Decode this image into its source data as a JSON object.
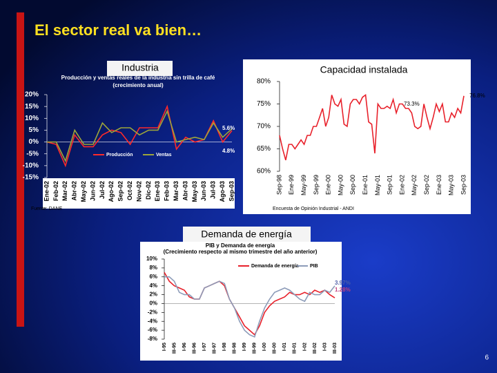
{
  "title": "El sector real va bien…",
  "page_number": "6",
  "chart_data": [
    {
      "type": "line",
      "panel_title": "Industria",
      "title": "Producción y ventas reales de la industria sin trilla de café",
      "subtitle": "(crecimiento anual)",
      "source": "Fuente: DANE",
      "categories": [
        "Ene-02",
        "Feb-02",
        "Mar-02",
        "Abr-02",
        "May-02",
        "Jun-02",
        "Jul-02",
        "Ago-02",
        "Sep-02",
        "Oct-02",
        "Nov-02",
        "Dic-02",
        "Ene-03",
        "Feb-03",
        "Mar-03",
        "Abr-03",
        "May-03",
        "Jun-03",
        "Jul-03",
        "Ago-03",
        "Sep-03"
      ],
      "series": [
        {
          "name": "Producción",
          "color": "#ff2a2a",
          "values": [
            0,
            -1,
            -10,
            3,
            -2,
            -2,
            3,
            5,
            4,
            -1,
            6,
            6,
            6,
            15,
            -3,
            2,
            0,
            1,
            9,
            0,
            4.8
          ]
        },
        {
          "name": "Ventas",
          "color": "#9ea63a",
          "values": [
            0,
            0,
            -8,
            5,
            -1,
            -1,
            8,
            4,
            6,
            6,
            3,
            5,
            5,
            13,
            0,
            1,
            2,
            1,
            8,
            2,
            5.6
          ]
        }
      ],
      "annotations": [
        "5.6%",
        "4.8%"
      ],
      "ylim": [
        -15,
        20
      ],
      "yticks": [
        {
          "value": 20,
          "label": "20%"
        },
        {
          "value": 15,
          "label": "15%"
        },
        {
          "value": 10,
          "label": "10%"
        },
        {
          "value": 5,
          "label": "5%"
        },
        {
          "value": 0,
          "label": "0%"
        },
        {
          "value": -5,
          "label": "-5%"
        },
        {
          "value": -10,
          "label": "-10%"
        },
        {
          "value": -15,
          "label": "-15%"
        }
      ],
      "grid": false,
      "legend": "bottom"
    },
    {
      "type": "line",
      "panel_title": "Capacidad instalada",
      "source": "Encuesta de Opinión Industrial - ANDI",
      "categories": [
        "Sep-98",
        null,
        null,
        null,
        "Ene-99",
        null,
        null,
        null,
        "May-99",
        null,
        null,
        null,
        "Sep-99",
        null,
        null,
        null,
        "Ene-00",
        null,
        null,
        null,
        "May-00",
        null,
        null,
        null,
        "Sep-00",
        null,
        null,
        null,
        "Ene-01",
        null,
        null,
        null,
        "May-01",
        null,
        null,
        null,
        "Sep-01",
        null,
        null,
        null,
        "Ene-02",
        null,
        null,
        null,
        "May-02",
        null,
        null,
        null,
        "Sep-02",
        null,
        null,
        null,
        "Ene-03",
        null,
        null,
        null,
        "May-03",
        null,
        null,
        null,
        "Sep-03"
      ],
      "series": [
        {
          "color": "#e8202a",
          "values": [
            68,
            65,
            62.5,
            66,
            66,
            65,
            66,
            67,
            66,
            68,
            68,
            70,
            70,
            72,
            74,
            70,
            72,
            77,
            75,
            74.5,
            76,
            70.5,
            70,
            75,
            76,
            76,
            75,
            76.5,
            77,
            71,
            70.5,
            64,
            75,
            74,
            74,
            74.5,
            74,
            76,
            73,
            75,
            75,
            74,
            74,
            73,
            70,
            69.5,
            70,
            75,
            72,
            69.5,
            72,
            75,
            73.3,
            75,
            71,
            71,
            73,
            72,
            74,
            73,
            76.8
          ]
        }
      ],
      "annotations": [
        "76.8%",
        "73.3%"
      ],
      "ylim": [
        60,
        80
      ],
      "yticks": [
        {
          "value": 80,
          "label": "80%"
        },
        {
          "value": 75,
          "label": "75%"
        },
        {
          "value": 70,
          "label": "70%"
        },
        {
          "value": 65,
          "label": "65%"
        },
        {
          "value": 60,
          "label": "60%"
        }
      ],
      "grid": false
    },
    {
      "type": "line",
      "panel_title": "Demanda de energía",
      "title": "PIB y Demanda de energía",
      "subtitle": "(Crecimiento respecto al mismo trimestre del año anterior)",
      "categories": [
        "I-95",
        null,
        "III-95",
        null,
        "I-96",
        null,
        "III-96",
        null,
        "I-97",
        null,
        "III-97",
        null,
        "I-98",
        null,
        "III-98",
        null,
        "I-99",
        null,
        "III-99",
        null,
        "I-00",
        null,
        "III-00",
        null,
        "I-01",
        null,
        "III-01",
        null,
        "I-02",
        null,
        "III-02",
        null,
        "I-03",
        null,
        "III-03"
      ],
      "series": [
        {
          "name": "Demanda de energía",
          "color": "#e8202a",
          "values": [
            7,
            5,
            4,
            3.5,
            3,
            1.5,
            1,
            1,
            3.5,
            4,
            4.5,
            5,
            4,
            1,
            -1,
            -3,
            -5,
            -6,
            -7,
            -5,
            -2,
            -0.5,
            0.5,
            1,
            1.5,
            2.5,
            2,
            2,
            2.5,
            2,
            3,
            2.5,
            3,
            2,
            1.28
          ]
        },
        {
          "name": "PIB",
          "color": "#8c9bb8",
          "values": [
            6,
            6,
            5,
            2.5,
            2,
            2,
            1,
            1,
            3.5,
            4,
            4.5,
            5,
            4.5,
            1,
            -1,
            -4,
            -6,
            -7,
            -7.5,
            -4,
            -1,
            1,
            2.5,
            3,
            3.5,
            3,
            2,
            1,
            0.5,
            2.5,
            2,
            2,
            3,
            2.5,
            3.97
          ]
        }
      ],
      "annotations": [
        "3.97%",
        "1.28%"
      ],
      "ylim": [
        -8,
        10
      ],
      "yticks": [
        {
          "value": 10,
          "label": "10%"
        },
        {
          "value": 8,
          "label": "8%"
        },
        {
          "value": 6,
          "label": "6%"
        },
        {
          "value": 4,
          "label": "4%"
        },
        {
          "value": 2,
          "label": "2%"
        },
        {
          "value": 0,
          "label": "0%"
        },
        {
          "value": -2,
          "label": "-2%"
        },
        {
          "value": -4,
          "label": "-4%"
        },
        {
          "value": -6,
          "label": "-6%"
        },
        {
          "value": -8,
          "label": "-8%"
        }
      ],
      "grid": false,
      "legend": "top"
    }
  ]
}
